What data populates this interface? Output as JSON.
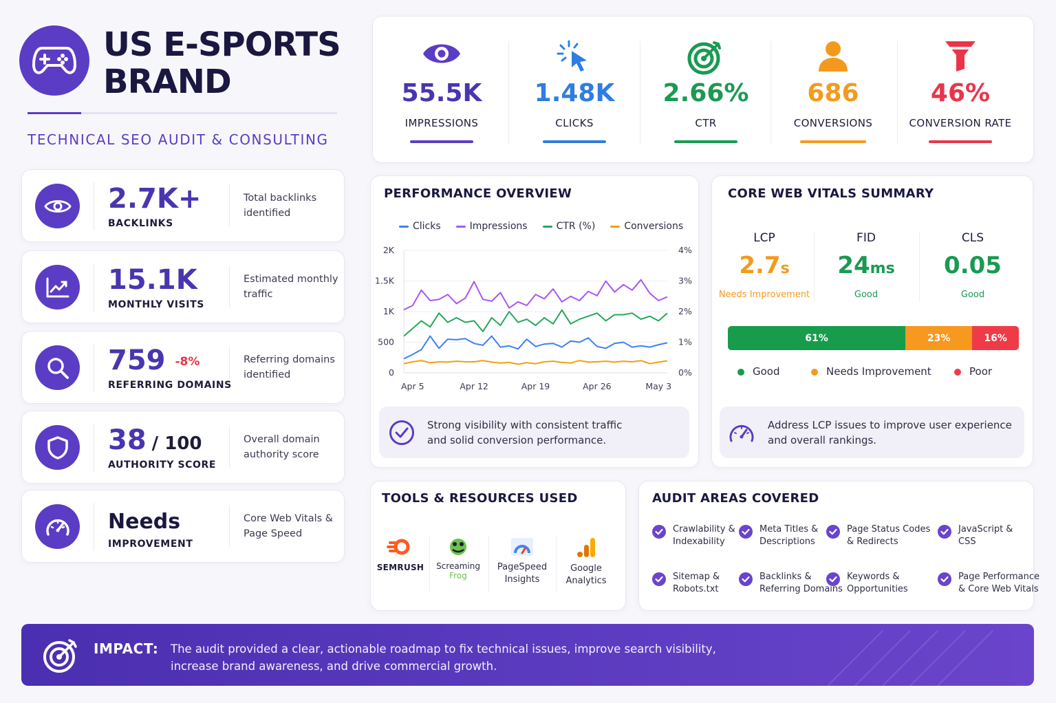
{
  "brand": {
    "title_line1": "US E-SPORTS",
    "title_line2": "BRAND",
    "subtitle": "TECHNICAL SEO AUDIT & CONSULTING"
  },
  "stats": [
    {
      "value": "2.7K+",
      "label": "BACKLINKS",
      "desc": "Total backlinks identified",
      "icon": "eye-icon"
    },
    {
      "value": "15.1K",
      "label": "MONTHLY VISITS",
      "desc": "Estimated monthly traffic",
      "icon": "trend-chart-icon"
    },
    {
      "value": "759",
      "delta": "-8%",
      "label": "REFERRING DOMAINS",
      "desc": "Referring domains identified",
      "icon": "search-icon"
    },
    {
      "value": "38",
      "suffix": "/ 100",
      "label": "AUTHORITY SCORE",
      "desc": "Overall domain authority score",
      "icon": "shield-icon"
    },
    {
      "value": "Needs",
      "label": "IMPROVEMENT",
      "desc": "Core Web Vitals & Page Speed",
      "icon": "speedometer-icon"
    }
  ],
  "kpis": [
    {
      "value": "55.5K",
      "label": "IMPRESSIONS",
      "color": "#5b3cc4",
      "icon": "eye-icon"
    },
    {
      "value": "1.48K",
      "label": "CLICKS",
      "color": "#2f7de1",
      "icon": "cursor-click-icon"
    },
    {
      "value": "2.66%",
      "label": "CTR",
      "color": "#1a9a52",
      "icon": "target-icon"
    },
    {
      "value": "686",
      "label": "CONVERSIONS",
      "color": "#f39a1e",
      "icon": "user-icon"
    },
    {
      "value": "46%",
      "label": "CONVERSION RATE",
      "color": "#e8354a",
      "icon": "funnel-icon"
    }
  ],
  "performance": {
    "title": "PERFORMANCE OVERVIEW",
    "note": "Strong visibility with consistent traffic and solid conversion performance."
  },
  "chart_data": {
    "type": "line",
    "x": [
      "Apr 4",
      "Apr 5",
      "Apr 6",
      "Apr 7",
      "Apr 8",
      "Apr 9",
      "Apr 10",
      "Apr 11",
      "Apr 12",
      "Apr 13",
      "Apr 14",
      "Apr 15",
      "Apr 16",
      "Apr 17",
      "Apr 18",
      "Apr 19",
      "Apr 20",
      "Apr 21",
      "Apr 22",
      "Apr 23",
      "Apr 24",
      "Apr 25",
      "Apr 26",
      "Apr 27",
      "Apr 28",
      "Apr 29",
      "Apr 30",
      "May 1",
      "May 2",
      "May 3",
      "May 4"
    ],
    "x_ticks": [
      "Apr 5",
      "Apr 12",
      "Apr 19",
      "Apr 26",
      "May 3"
    ],
    "y_left": {
      "ticks": [
        "0",
        "500",
        "1K",
        "1.5K",
        "2K"
      ],
      "lim": [
        0,
        2000
      ]
    },
    "y_right": {
      "ticks": [
        "0%",
        "1%",
        "2%",
        "3%",
        "4%"
      ],
      "lim": [
        0,
        4
      ]
    },
    "series": [
      {
        "name": "Clicks",
        "color": "#3b82f6",
        "axis": "left",
        "values": [
          230,
          300,
          380,
          600,
          400,
          550,
          540,
          560,
          480,
          450,
          600,
          420,
          440,
          390,
          550,
          430,
          470,
          480,
          420,
          520,
          500,
          570,
          430,
          400,
          480,
          500,
          420,
          440,
          420,
          460,
          490
        ]
      },
      {
        "name": "Impressions",
        "color": "#a855f7",
        "axis": "left",
        "values": [
          1030,
          1100,
          1350,
          1180,
          1200,
          1280,
          1130,
          1220,
          1490,
          1200,
          1170,
          1310,
          1060,
          1160,
          1100,
          1280,
          1210,
          1370,
          1160,
          1250,
          1180,
          1330,
          1260,
          1500,
          1320,
          1440,
          1350,
          1520,
          1300,
          1180,
          1240
        ]
      },
      {
        "name": "CTR (%)",
        "color": "#22a957",
        "axis": "right",
        "values": [
          1.2,
          1.45,
          1.7,
          1.5,
          1.95,
          1.65,
          1.8,
          1.65,
          1.7,
          1.35,
          1.8,
          1.55,
          2.0,
          1.65,
          1.75,
          1.55,
          1.8,
          1.6,
          2.05,
          1.6,
          1.75,
          1.85,
          1.95,
          1.7,
          1.9,
          1.9,
          1.95,
          1.75,
          1.85,
          1.7,
          1.95
        ]
      },
      {
        "name": "Conversions",
        "color": "#f59e0b",
        "axis": "left",
        "values": [
          150,
          180,
          200,
          165,
          180,
          175,
          190,
          180,
          180,
          200,
          175,
          160,
          170,
          140,
          165,
          150,
          180,
          190,
          170,
          160,
          200,
          175,
          180,
          190,
          175,
          190,
          180,
          200,
          150,
          175,
          195
        ]
      }
    ]
  },
  "vitals": {
    "title": "CORE WEB VITALS SUMMARY",
    "items": [
      {
        "name": "LCP",
        "value": "2.7",
        "unit": "s",
        "status": "Needs Improvement",
        "color": "#f39a1e"
      },
      {
        "name": "FID",
        "value": "24",
        "unit": "ms",
        "status": "Good",
        "color": "#1a9a52"
      },
      {
        "name": "CLS",
        "value": "0.05",
        "unit": "",
        "status": "Good",
        "color": "#1a9a52"
      }
    ],
    "distribution": [
      {
        "label": "61%",
        "value": 61,
        "color": "#179c4c"
      },
      {
        "label": "23%",
        "value": 23,
        "color": "#f7981f"
      },
      {
        "label": "16%",
        "value": 16,
        "color": "#ef3b47"
      }
    ],
    "legend": [
      {
        "label": "Good",
        "color": "#179c4c"
      },
      {
        "label": "Needs Improvement",
        "color": "#f7981f"
      },
      {
        "label": "Poor",
        "color": "#ef3b47"
      }
    ],
    "note": "Address LCP issues to improve user experience and overall rankings."
  },
  "tools": {
    "title": "TOOLS & RESOURCES USED",
    "items": [
      {
        "line1": "SEMRUSH",
        "line2": "",
        "icon": "semrush-logo-icon"
      },
      {
        "line1": "Screaming",
        "line2": "Frog",
        "icon": "frog-logo-icon"
      },
      {
        "line1": "PageSpeed",
        "line2": "Insights",
        "icon": "pagespeed-logo-icon"
      },
      {
        "line1": "Google",
        "line2": "Analytics",
        "icon": "analytics-logo-icon"
      }
    ]
  },
  "audit": {
    "title": "AUDIT AREAS COVERED",
    "items": [
      {
        "line1": "Crawlability &",
        "line2": "Indexability"
      },
      {
        "line1": "Meta Titles &",
        "line2": "Descriptions"
      },
      {
        "line1": "Page Status Codes",
        "line2": "& Redirects"
      },
      {
        "line1": "JavaScript &",
        "line2": "CSS"
      },
      {
        "line1": "Sitemap &",
        "line2": "Robots.txt"
      },
      {
        "line1": "Backlinks &",
        "line2": "Referring Domains"
      },
      {
        "line1": "Keywords &",
        "line2": "Opportunities"
      },
      {
        "line1": "Page Performance",
        "line2": "& Core Web Vitals"
      }
    ]
  },
  "impact": {
    "label": "IMPACT:",
    "text": "The audit provided a clear, actionable roadmap to fix technical issues, improve search visibility, increase brand awareness, and drive commercial growth."
  }
}
